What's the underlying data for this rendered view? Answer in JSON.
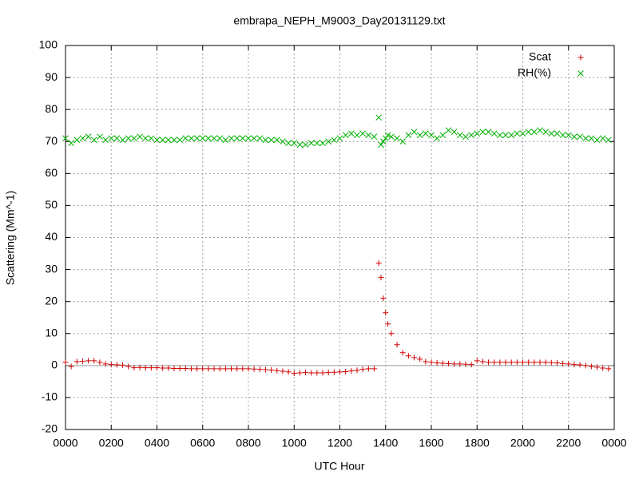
{
  "chart_data": {
    "type": "scatter",
    "title": "embrapa_NEPH_M9003_Day20131129.txt",
    "xlabel": "UTC Hour",
    "ylabel": "Scattering (Mm^-1)",
    "xlim": [
      0,
      24
    ],
    "ylim": [
      -20,
      100
    ],
    "xticks": [
      {
        "value": 0,
        "label": "0000"
      },
      {
        "value": 2,
        "label": "0200"
      },
      {
        "value": 4,
        "label": "0400"
      },
      {
        "value": 6,
        "label": "0600"
      },
      {
        "value": 8,
        "label": "0800"
      },
      {
        "value": 10,
        "label": "1000"
      },
      {
        "value": 12,
        "label": "1200"
      },
      {
        "value": 14,
        "label": "1400"
      },
      {
        "value": 16,
        "label": "1600"
      },
      {
        "value": 18,
        "label": "1800"
      },
      {
        "value": 20,
        "label": "2000"
      },
      {
        "value": 22,
        "label": "2200"
      },
      {
        "value": 24,
        "label": "0000"
      }
    ],
    "yticks": [
      -20,
      -10,
      0,
      10,
      20,
      30,
      40,
      50,
      60,
      70,
      80,
      90,
      100
    ],
    "grid": true,
    "zeroaxis": true,
    "legend": "top-right",
    "x": [
      0,
      0.25,
      0.5,
      0.75,
      1,
      1.25,
      1.5,
      1.75,
      2,
      2.25,
      2.5,
      2.75,
      3,
      3.25,
      3.5,
      3.75,
      4,
      4.25,
      4.5,
      4.75,
      5,
      5.25,
      5.5,
      5.75,
      6,
      6.25,
      6.5,
      6.75,
      7,
      7.25,
      7.5,
      7.75,
      8,
      8.25,
      8.5,
      8.75,
      9,
      9.25,
      9.5,
      9.75,
      10,
      10.25,
      10.5,
      10.75,
      11,
      11.25,
      11.5,
      11.75,
      12,
      12.25,
      12.5,
      12.75,
      13,
      13.25,
      13.5,
      13.7,
      13.8,
      13.9,
      14,
      14.1,
      14.25,
      14.5,
      14.75,
      15,
      15.25,
      15.5,
      15.75,
      16,
      16.25,
      16.5,
      16.75,
      17,
      17.25,
      17.5,
      17.75,
      18,
      18.25,
      18.5,
      18.75,
      19,
      19.25,
      19.5,
      19.75,
      20,
      20.25,
      20.5,
      20.75,
      21,
      21.25,
      21.5,
      21.75,
      22,
      22.25,
      22.5,
      22.75,
      23,
      23.25,
      23.5,
      23.75
    ],
    "series": [
      {
        "name": "Scat",
        "color": "#d00000",
        "marker": "plus",
        "values": [
          1,
          -0.3,
          1.2,
          1.3,
          1.5,
          1.5,
          1,
          0.5,
          0.3,
          0.2,
          0.1,
          -0.3,
          -0.7,
          -0.6,
          -0.7,
          -0.7,
          -0.7,
          -0.8,
          -0.8,
          -0.9,
          -0.9,
          -0.9,
          -1,
          -1,
          -1,
          -1,
          -1,
          -1,
          -1,
          -1,
          -1,
          -1,
          -1,
          -1.1,
          -1.2,
          -1.3,
          -1.4,
          -1.6,
          -1.8,
          -2,
          -2.4,
          -2.3,
          -2.2,
          -2.3,
          -2.3,
          -2.3,
          -2.2,
          -2.1,
          -2,
          -1.9,
          -1.7,
          -1.5,
          -1.2,
          -1,
          -1,
          32,
          27.5,
          21,
          16.5,
          13,
          10,
          6.5,
          4,
          3,
          2.5,
          2,
          1.2,
          1,
          0.8,
          0.7,
          0.6,
          0.5,
          0.5,
          0.4,
          0.3,
          1.5,
          1.2,
          1,
          1,
          1,
          1,
          1,
          1,
          1,
          1,
          1,
          1,
          1,
          0.9,
          0.8,
          0.6,
          0.5,
          0.3,
          0.2,
          0,
          -0.3,
          -0.5,
          -0.8,
          -1
        ]
      },
      {
        "name": "RH(%)",
        "color": "#00b000",
        "marker": "cross",
        "values": [
          71,
          69.5,
          70.5,
          71,
          71.5,
          70.5,
          71.5,
          70.5,
          71,
          71,
          70.5,
          71,
          71,
          71.5,
          71,
          71,
          70.5,
          70.5,
          70.5,
          70.5,
          70.5,
          71,
          71,
          71,
          71,
          71,
          71,
          71,
          70.5,
          71,
          71,
          71,
          71,
          71,
          71,
          70.5,
          70.5,
          70.5,
          70,
          69.5,
          69.5,
          69,
          69,
          69.5,
          69.5,
          69.5,
          70,
          70.5,
          71,
          72,
          72.5,
          72,
          72.5,
          72,
          71.5,
          77.5,
          69,
          70,
          71,
          72,
          71.5,
          71,
          70,
          72,
          73,
          72,
          72.5,
          72,
          71,
          72,
          73.5,
          73,
          72,
          71.5,
          72,
          72.5,
          73,
          73,
          72.5,
          72,
          72,
          72,
          72.5,
          72.5,
          73,
          73,
          73.5,
          73,
          72.5,
          72.5,
          72,
          72,
          71.5,
          71.5,
          71,
          71,
          70.5,
          71,
          70.5
        ]
      }
    ]
  }
}
